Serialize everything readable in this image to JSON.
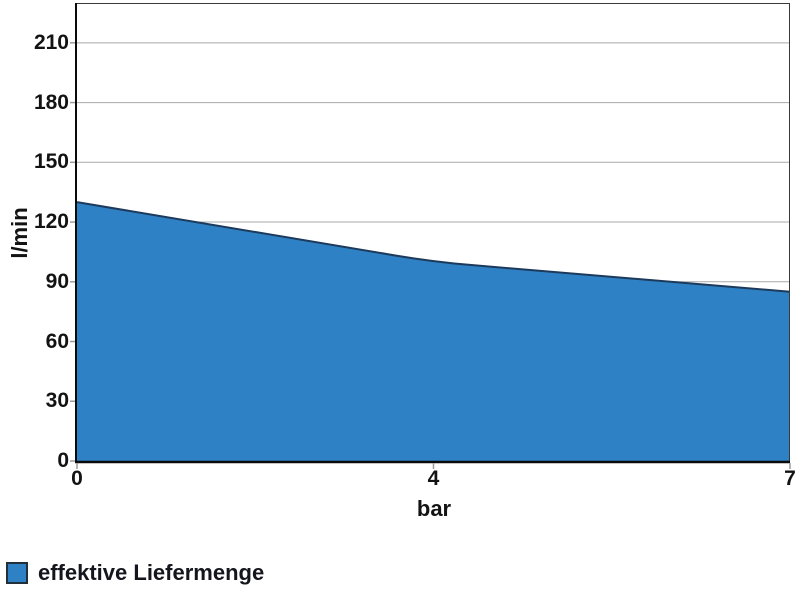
{
  "chart_data": {
    "type": "area",
    "x": [
      0,
      4,
      7
    ],
    "x_tick_labels": [
      "0",
      "4",
      "7"
    ],
    "series": [
      {
        "name": "effektive Liefermenge",
        "values": [
          130,
          100,
          85
        ]
      }
    ],
    "xlabel": "bar",
    "ylabel": "l/min",
    "ylim": [
      0,
      230
    ],
    "yticks": [
      0,
      30,
      60,
      90,
      120,
      150,
      180,
      210
    ],
    "grid": "horizontal",
    "legend_position": "bottom-left",
    "colors": {
      "area_fill": "#2E81C4",
      "area_stroke": "#1C3A5C",
      "gridline": "#A9A9A9",
      "tick": "#9B9B9B",
      "axis": "#0A0A0A",
      "plot_border": "#3A3A3A",
      "text": "#131313"
    }
  },
  "legend": {
    "items": [
      {
        "label": "effektive Liefermenge",
        "swatch_color": "#2E81C4"
      }
    ]
  }
}
